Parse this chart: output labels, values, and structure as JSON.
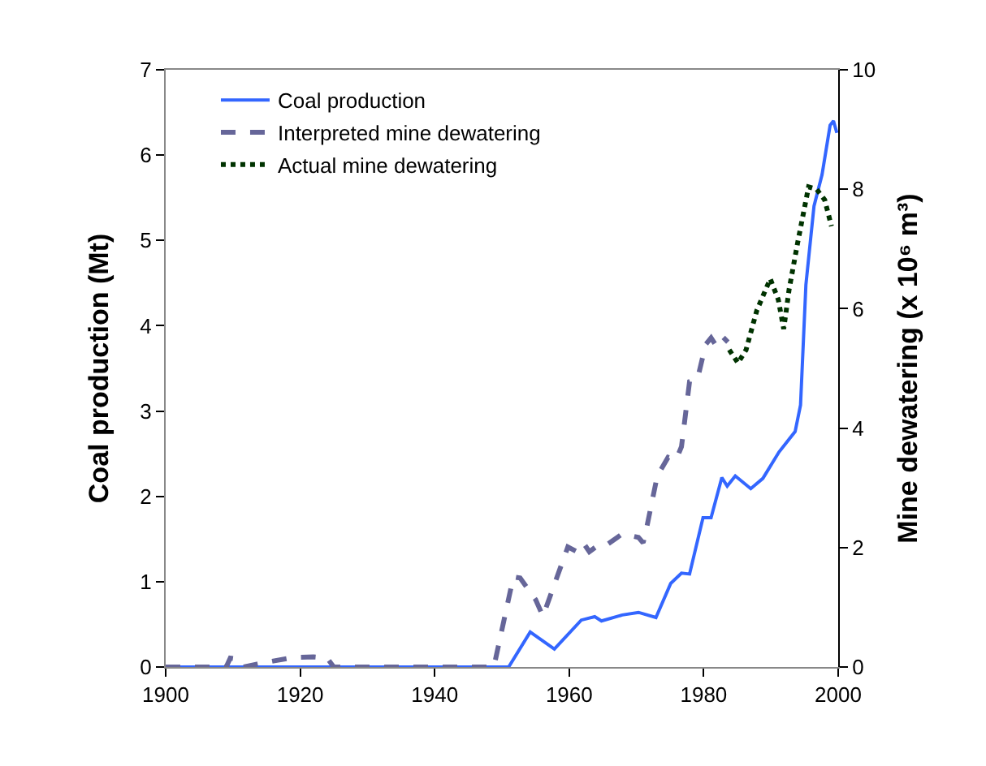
{
  "chart_data": {
    "type": "line",
    "xlabel": null,
    "ylabel": "Coal production (Mt)",
    "y2label": "Mine dewatering (x 10⁶ m³)",
    "xlim": [
      1900,
      2000
    ],
    "xticks": [
      1900,
      1920,
      1940,
      1960,
      1980,
      2000
    ],
    "ylim": [
      0,
      7
    ],
    "yticks": [
      0,
      1,
      2,
      3,
      4,
      5,
      6,
      7
    ],
    "y2lim": [
      0,
      10
    ],
    "y2ticks": [
      0,
      2,
      4,
      6,
      8,
      10
    ],
    "legend": "top left",
    "marker": "none",
    "series": [
      {
        "name": "Coal production",
        "color": "#3366ff",
        "line_style": "solid",
        "axis": "y",
        "x": [
          1900,
          1951,
          1954.2,
          1957.8,
          1961.8,
          1963.8,
          1964.8,
          1967.9,
          1970.3,
          1972.9,
          1975.1,
          1976.7,
          1977.9,
          1979.9,
          1981.1,
          1982.7,
          1983.5,
          1984.7,
          1987,
          1988.8,
          1991.2,
          1993.6,
          1994.4,
          1995.2,
          1996.4,
          1997.6,
          1998.8,
          1999.3,
          1999.8
        ],
        "values": [
          0,
          0,
          0.41,
          0.21,
          0.55,
          0.59,
          0.54,
          0.61,
          0.64,
          0.58,
          0.98,
          1.1,
          1.09,
          1.75,
          1.75,
          2.22,
          2.12,
          2.24,
          2.09,
          2.21,
          2.52,
          2.76,
          3.07,
          4.48,
          5.4,
          5.77,
          6.35,
          6.4,
          6.26
        ]
      },
      {
        "name": "Interpreted mine dewatering",
        "color": "#666699",
        "line_style": "dashed",
        "axis": "y2",
        "x": [
          1900,
          1909,
          1909.6,
          1910.8,
          1911.6,
          1913.6,
          1916,
          1919,
          1922,
          1924,
          1925,
          1948.8,
          1951.7,
          1952.7,
          1955,
          1956.1,
          1959.8,
          1961,
          1962.1,
          1963,
          1964.2,
          1965.4,
          1967.9,
          1970.3,
          1971,
          1971.5,
          1973.1,
          1974.7,
          1975.9,
          1976.7,
          1977.9,
          1979.1,
          1980.3,
          1981.1,
          1981.9,
          1982.9,
          1983.6
        ],
        "values": [
          0,
          0,
          0.15,
          0.13,
          0,
          0.05,
          0.1,
          0.16,
          0.17,
          0.15,
          0,
          0,
          1.51,
          1.49,
          1.13,
          0.85,
          2.01,
          1.94,
          2.08,
          1.93,
          2.03,
          2.03,
          2.23,
          2.17,
          2.08,
          2.32,
          3.2,
          3.51,
          3.47,
          3.69,
          4.78,
          4.83,
          5.4,
          5.51,
          5.37,
          5.52,
          5.44
        ]
      },
      {
        "name": "Actual mine dewatering",
        "color": "#003300",
        "line_style": "dotted",
        "axis": "y2",
        "x": [
          1983.8,
          1985.1,
          1986.3,
          1987.9,
          1989.9,
          1991.1,
          1991.9,
          1992.7,
          1994,
          1995.6,
          1996.8,
          1998,
          1999
        ],
        "values": [
          5.31,
          5.09,
          5.31,
          5.97,
          6.5,
          6.15,
          5.66,
          6.32,
          7.12,
          8.04,
          8,
          7.82,
          7.38
        ]
      }
    ]
  }
}
